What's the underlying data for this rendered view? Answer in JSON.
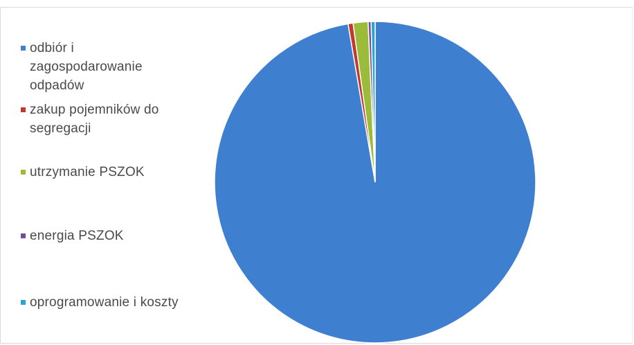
{
  "chart_data": {
    "type": "pie",
    "title": "",
    "categories": [
      "odbiór i zagospodarowanie odpadów",
      "zakup pojemników do segregacji",
      "utrzymanie PSZOK",
      "energia PSZOK",
      "oprogramowanie i koszty"
    ],
    "values": [
      97.3,
      0.5,
      1.5,
      0.3,
      0.4
    ],
    "colors": [
      "#3f7fcf",
      "#c0392b",
      "#9bbb3b",
      "#7a4a9a",
      "#2aa3d8"
    ],
    "start_angle_deg": 0,
    "direction": "clockwise",
    "legend_position": "left"
  }
}
